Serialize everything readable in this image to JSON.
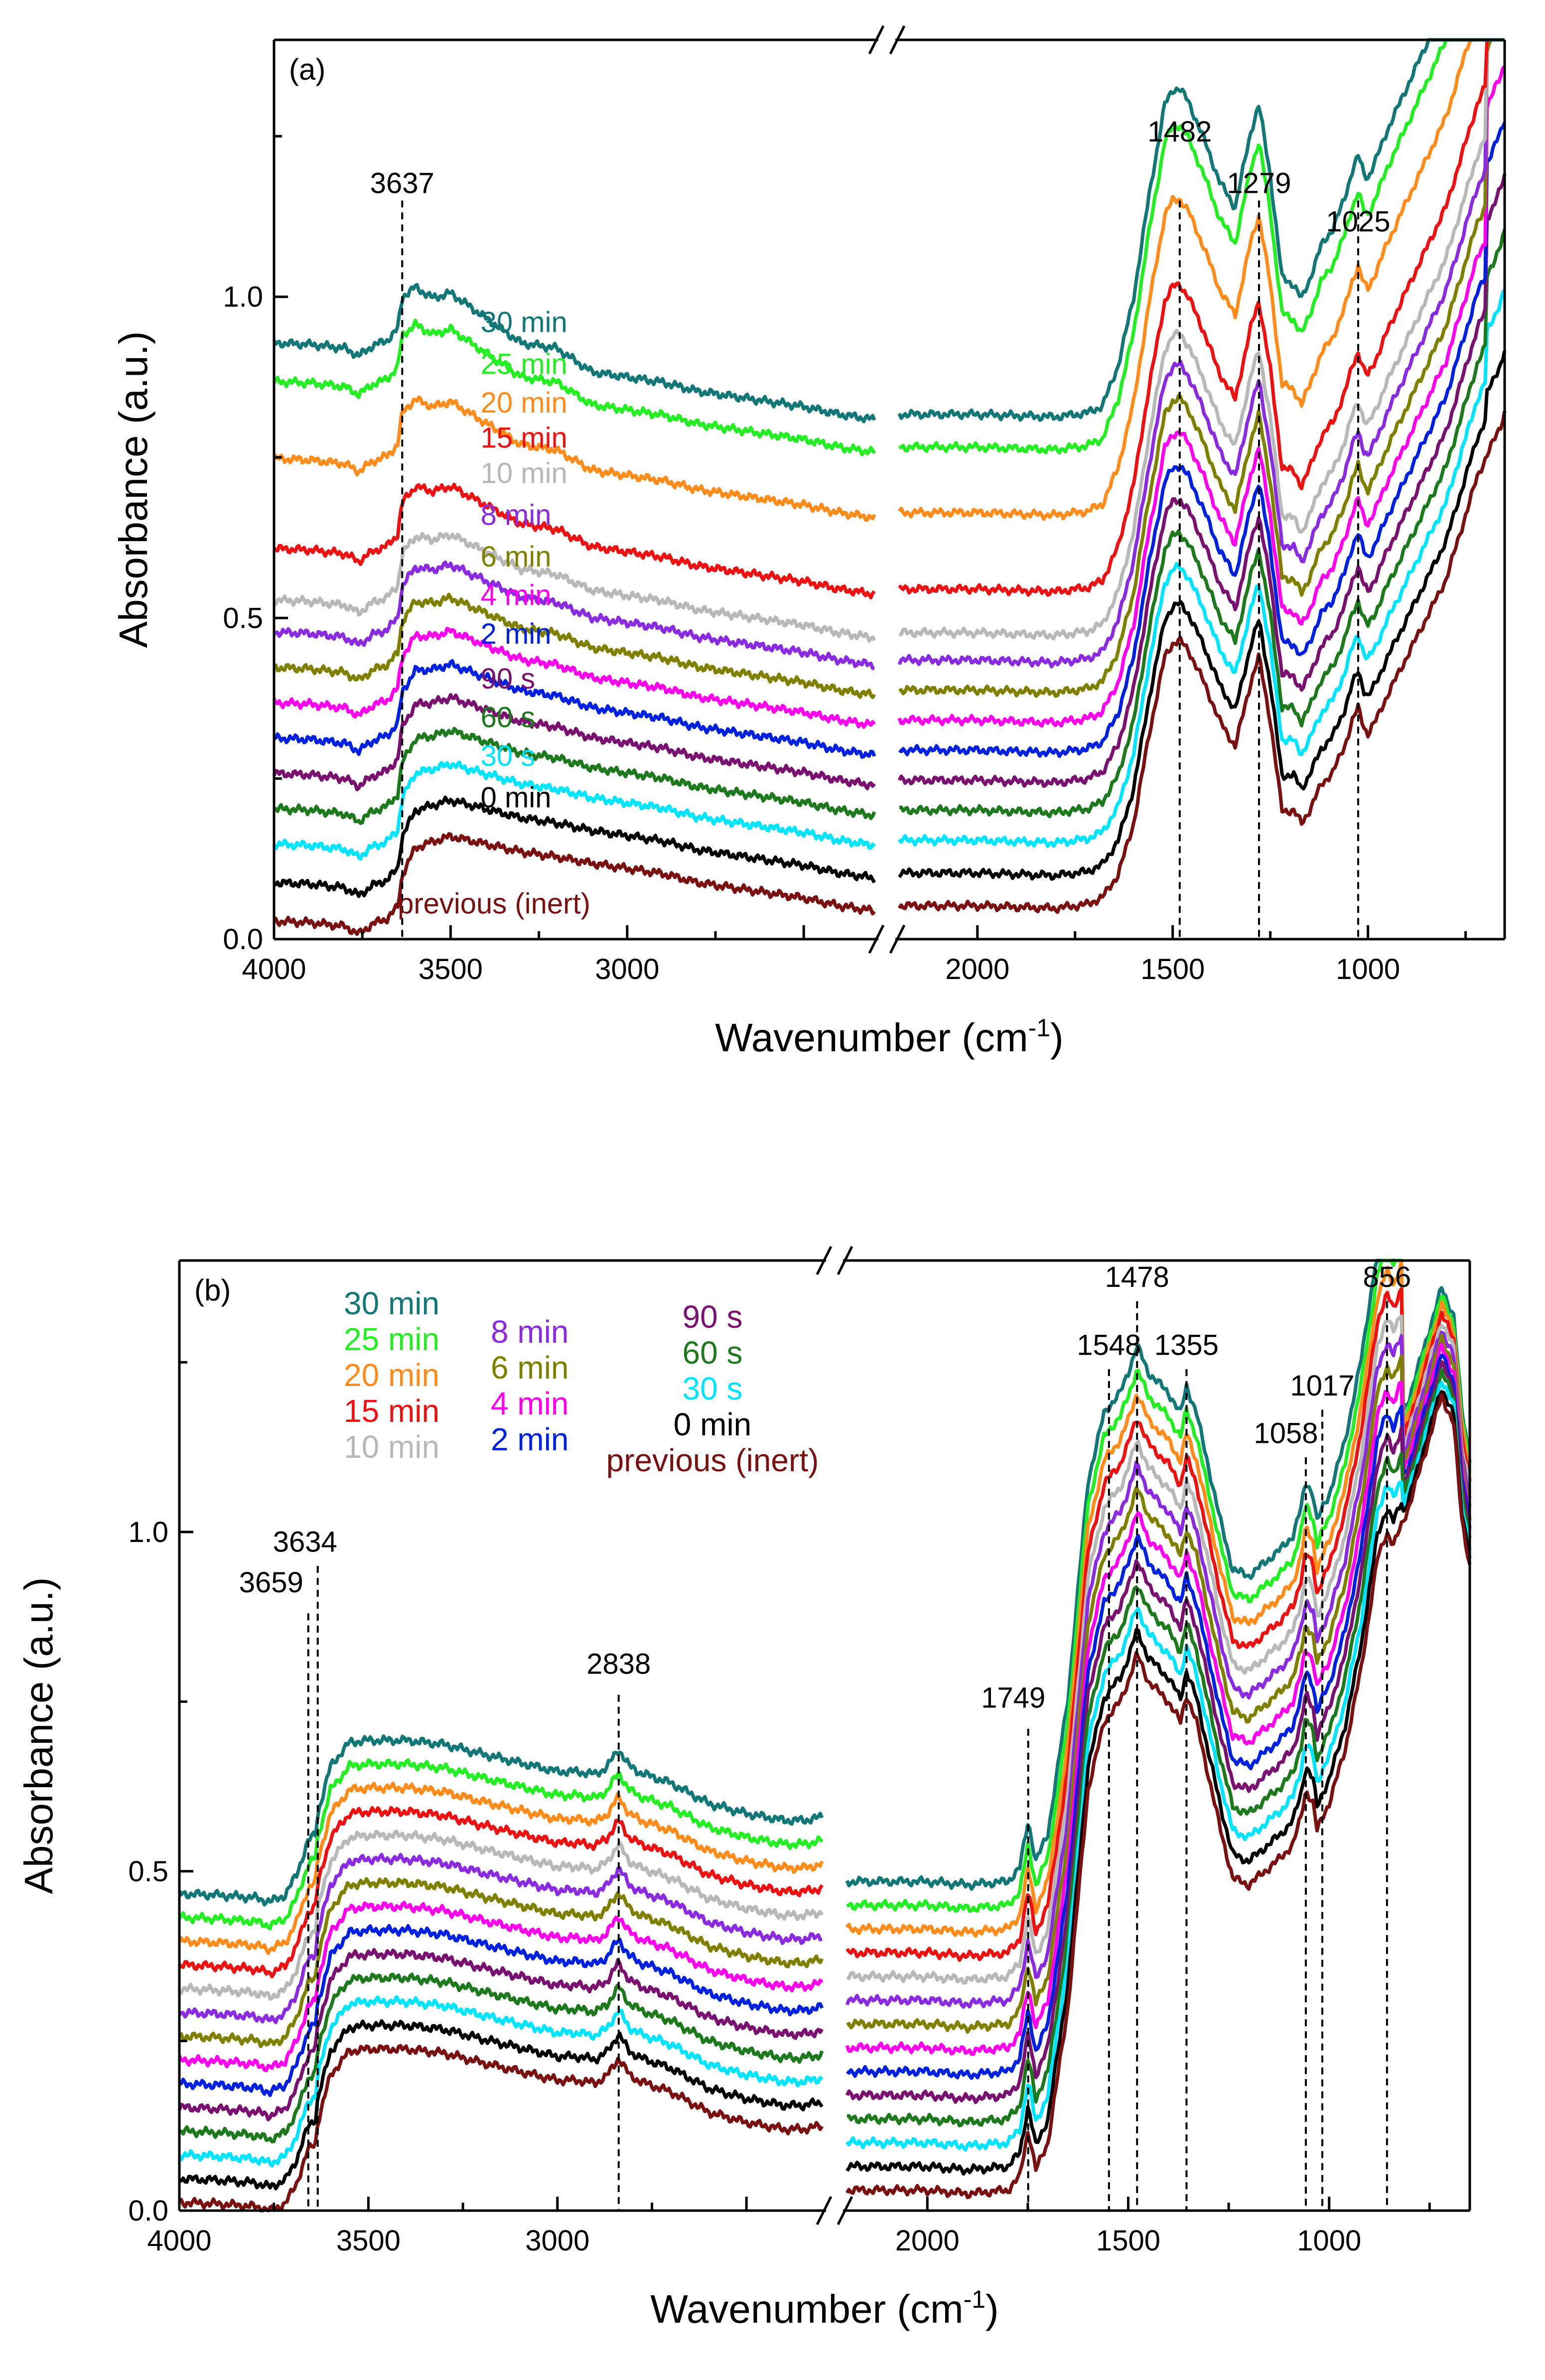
{
  "chart_data": [
    {
      "type": "line",
      "panel_label": "(a)",
      "xlabel": "Wavenumber (cm",
      "xlabel_sup": "-1",
      "xlabel_close": ")",
      "ylabel": "Absorbance (a.u.)",
      "ylim": [
        0.0,
        1.4
      ],
      "x_segments": [
        [
          4000,
          2300
        ],
        [
          2200,
          650
        ]
      ],
      "x_reversed": true,
      "xticks": [
        {
          "v": 4000,
          "label": "4000"
        },
        {
          "v": 3500,
          "label": "3500"
        },
        {
          "v": 3000,
          "label": "3000"
        },
        {
          "v": 2000,
          "label": "2000"
        },
        {
          "v": 1500,
          "label": "1500"
        },
        {
          "v": 1000,
          "label": "1000"
        }
      ],
      "yticks": [
        {
          "v": 0.0,
          "label": "0.0"
        },
        {
          "v": 0.5,
          "label": "0.5"
        },
        {
          "v": 1.0,
          "label": "1.0"
        }
      ],
      "marked_peaks": [
        {
          "x": 3637,
          "label": "3637",
          "label_y": 1.15
        },
        {
          "x": 1482,
          "label": "1482",
          "label_y": 1.23
        },
        {
          "x": 1279,
          "label": "1279",
          "label_y": 1.15
        },
        {
          "x": 1025,
          "label": "1025",
          "label_y": 1.09
        }
      ],
      "peak_line_top": 1.15,
      "legend_placement": "inline-above-curves",
      "shape": {
        "x": [
          4000,
          3900,
          3800,
          3760,
          3720,
          3680,
          3650,
          3637,
          3600,
          3550,
          3500,
          3400,
          3300,
          3200,
          3100,
          3000,
          2900,
          2800,
          2700,
          2600,
          2500,
          2400,
          2300,
          2200,
          2000,
          1800,
          1720,
          1680,
          1640,
          1600,
          1560,
          1520,
          1500,
          1482,
          1460,
          1420,
          1380,
          1340,
          1300,
          1279,
          1250,
          1220,
          1190,
          1170,
          1150,
          1120,
          1090,
          1060,
          1040,
          1025,
          1010,
          1000,
          980,
          950,
          900,
          850,
          800,
          760,
          720,
          690,
          660,
          650
        ],
        "base": [
          0.028,
          0.026,
          0.02,
          0.008,
          0.024,
          0.032,
          0.05,
          0.1,
          0.142,
          0.152,
          0.16,
          0.148,
          0.136,
          0.128,
          0.118,
          0.11,
          0.102,
          0.088,
          0.08,
          0.072,
          0.064,
          0.052,
          0.044,
          0.052,
          0.052,
          0.048,
          0.054,
          0.065,
          0.1,
          0.18,
          0.32,
          0.44,
          0.46,
          0.465,
          0.45,
          0.4,
          0.34,
          0.3,
          0.4,
          0.44,
          0.34,
          0.2,
          0.2,
          0.18,
          0.2,
          0.24,
          0.26,
          0.3,
          0.34,
          0.36,
          0.33,
          0.32,
          0.34,
          0.38,
          0.44,
          0.5,
          0.56,
          0.64,
          0.72,
          0.76,
          0.8,
          0.82
        ],
        "flatten": [
          0,
          0,
          0,
          0,
          0,
          0,
          0,
          0,
          0.2,
          0.4,
          0.4,
          0.6,
          0.8,
          0.8,
          1,
          1,
          1,
          1,
          1,
          1,
          1,
          1,
          1,
          1,
          1,
          1,
          1,
          1,
          0.8,
          0.6,
          0.45,
          0.3,
          0.28,
          0.3,
          0.34,
          0.4,
          0.45,
          0.45,
          0.32,
          0.3,
          0.38,
          0.52,
          0.6,
          0.62,
          0.55,
          0.45,
          0.4,
          0.35,
          0.32,
          0.3,
          0.28,
          0.26,
          0.2,
          0.15,
          0.1,
          0.05,
          0,
          0,
          0,
          0,
          0,
          0
        ]
      },
      "series": [
        {
          "name": "previous (inert)",
          "color": "#7a1010",
          "offset": 0.0,
          "label_y": 0.04,
          "label_x": 3415
        },
        {
          "name": "0 min",
          "color": "#000000",
          "offset": 0.06,
          "label_y": 0.205,
          "label_x": 3415
        },
        {
          "name": "30 s",
          "color": "#00e5ff",
          "offset": 0.12,
          "label_y": 0.27,
          "label_x": 3415
        },
        {
          "name": "60 s",
          "color": "#1c7a1c",
          "offset": 0.175,
          "label_y": 0.33,
          "label_x": 3415
        },
        {
          "name": "90 s",
          "color": "#7a1070",
          "offset": 0.23,
          "label_y": 0.39,
          "label_x": 3415
        },
        {
          "name": "2 min",
          "color": "#0022e0",
          "offset": 0.285,
          "label_y": 0.46,
          "label_x": 3415
        },
        {
          "name": "4 min",
          "color": "#ff00ee",
          "offset": 0.34,
          "label_y": 0.52,
          "label_x": 3415
        },
        {
          "name": "6 min",
          "color": "#808000",
          "offset": 0.395,
          "label_y": 0.58,
          "label_x": 3415
        },
        {
          "name": "8 min",
          "color": "#8a2be2",
          "offset": 0.45,
          "label_y": 0.645,
          "label_x": 3415
        },
        {
          "name": "10 min",
          "color": "#b8b8b8",
          "offset": 0.5,
          "label_y": 0.71,
          "label_x": 3415
        },
        {
          "name": "15 min",
          "color": "#ee1111",
          "offset": 0.58,
          "label_y": 0.765,
          "label_x": 3415
        },
        {
          "name": "20 min",
          "color": "#ff8c1a",
          "offset": 0.72,
          "label_y": 0.82,
          "label_x": 3415
        },
        {
          "name": "25 min",
          "color": "#22ee22",
          "offset": 0.84,
          "label_y": 0.88,
          "label_x": 3415
        },
        {
          "name": "30 min",
          "color": "#117777",
          "offset": 0.9,
          "label_y": 0.945,
          "label_x": 3415
        }
      ]
    },
    {
      "type": "line",
      "panel_label": "(b)",
      "xlabel": "Wavenumber (cm",
      "xlabel_sup": "-1",
      "xlabel_close": ")",
      "ylabel": "Absorbance (a.u.)",
      "ylim": [
        0.0,
        1.4
      ],
      "x_segments": [
        [
          4000,
          2300
        ],
        [
          2200,
          650
        ]
      ],
      "x_reversed": true,
      "xticks": [
        {
          "v": 4000,
          "label": "4000"
        },
        {
          "v": 3500,
          "label": "3500"
        },
        {
          "v": 3000,
          "label": "3000"
        },
        {
          "v": 2000,
          "label": "2000"
        },
        {
          "v": 1500,
          "label": "1500"
        },
        {
          "v": 1000,
          "label": "1000"
        }
      ],
      "yticks": [
        {
          "v": 0.0,
          "label": "0.0"
        },
        {
          "v": 0.5,
          "label": "0.5"
        },
        {
          "v": 1.0,
          "label": "1.0"
        }
      ],
      "marked_peaks": [
        {
          "x": 3659,
          "label": "3659",
          "label_y": 0.9,
          "line_top": 0.88
        },
        {
          "x": 3634,
          "label": "3634",
          "label_y": 0.96,
          "line_top": 0.95
        },
        {
          "x": 2838,
          "label": "2838",
          "label_y": 0.78,
          "line_top": 0.76
        },
        {
          "x": 1749,
          "label": "1749",
          "label_y": 0.73,
          "line_top": 0.71
        },
        {
          "x": 1548,
          "label": "1548",
          "label_y": 1.25,
          "line_top": 1.24
        },
        {
          "x": 1478,
          "label": "1478",
          "label_y": 1.35,
          "line_top": 1.34
        },
        {
          "x": 1355,
          "label": "1355",
          "label_y": 1.25,
          "line_top": 1.24
        },
        {
          "x": 1058,
          "label": "1058",
          "label_y": 1.12,
          "line_top": 1.11
        },
        {
          "x": 1017,
          "label": "1017",
          "label_y": 1.19,
          "line_top": 1.18
        },
        {
          "x": 856,
          "label": "856",
          "label_y": 1.35,
          "line_top": 1.34
        }
      ],
      "legend_placement": "top-left",
      "shape": {
        "x": [
          4000,
          3900,
          3800,
          3760,
          3720,
          3690,
          3659,
          3640,
          3634,
          3600,
          3550,
          3500,
          3400,
          3300,
          3200,
          3100,
          3000,
          2950,
          2900,
          2870,
          2838,
          2810,
          2780,
          2700,
          2600,
          2500,
          2400,
          2350,
          2300,
          2200,
          2100,
          2000,
          1900,
          1800,
          1770,
          1749,
          1730,
          1700,
          1650,
          1600,
          1560,
          1548,
          1520,
          1500,
          1478,
          1450,
          1400,
          1370,
          1355,
          1330,
          1300,
          1270,
          1240,
          1200,
          1160,
          1120,
          1090,
          1070,
          1058,
          1040,
          1030,
          1017,
          1000,
          960,
          920,
          880,
          856,
          840,
          800,
          760,
          720,
          690,
          670,
          650
        ],
        "base": [
          0.012,
          0.01,
          0.006,
          0.0,
          0.01,
          0.04,
          0.09,
          0.1,
          0.13,
          0.2,
          0.235,
          0.238,
          0.238,
          0.232,
          0.218,
          0.205,
          0.192,
          0.192,
          0.188,
          0.198,
          0.225,
          0.2,
          0.19,
          0.175,
          0.145,
          0.13,
          0.12,
          0.12,
          0.125,
          0.03,
          0.03,
          0.03,
          0.025,
          0.03,
          0.05,
          0.12,
          0.06,
          0.1,
          0.3,
          0.62,
          0.72,
          0.73,
          0.75,
          0.78,
          0.82,
          0.78,
          0.75,
          0.72,
          0.76,
          0.72,
          0.64,
          0.56,
          0.49,
          0.48,
          0.5,
          0.52,
          0.54,
          0.58,
          0.62,
          0.6,
          0.56,
          0.58,
          0.6,
          0.68,
          0.8,
          0.96,
          1.0,
          0.98,
          1.04,
          1.12,
          1.2,
          1.16,
          1.02,
          0.95
        ],
        "spread": 0.035,
        "tail_x": 820
      },
      "series": [
        {
          "name": "30 min",
          "color": "#117777",
          "index": 13
        },
        {
          "name": "25 min",
          "color": "#22ee22",
          "index": 12
        },
        {
          "name": "20 min",
          "color": "#ff8c1a",
          "index": 11
        },
        {
          "name": "15 min",
          "color": "#ee1111",
          "index": 10
        },
        {
          "name": "10 min",
          "color": "#b8b8b8",
          "index": 9
        },
        {
          "name": "8 min",
          "color": "#8a2be2",
          "index": 8
        },
        {
          "name": "6 min",
          "color": "#808000",
          "index": 7
        },
        {
          "name": "4 min",
          "color": "#ff00ee",
          "index": 6
        },
        {
          "name": "2 min",
          "color": "#0022e0",
          "index": 5
        },
        {
          "name": "90 s",
          "color": "#7a1070",
          "index": 4
        },
        {
          "name": "60 s",
          "color": "#1c7a1c",
          "index": 3
        },
        {
          "name": "30 s",
          "color": "#00e5ff",
          "index": 2
        },
        {
          "name": "0 min",
          "color": "#000000",
          "index": 1
        },
        {
          "name": "previous (inert)",
          "color": "#7a1010",
          "index": 0
        }
      ],
      "legend_columns": [
        [
          "30 min",
          "25 min",
          "20 min",
          "15 min",
          "10 min"
        ],
        [
          "8 min",
          "6 min",
          "4 min",
          "2 min"
        ],
        [
          "90 s",
          "60 s",
          "30 s",
          "0 min",
          "previous (inert)"
        ]
      ]
    }
  ]
}
